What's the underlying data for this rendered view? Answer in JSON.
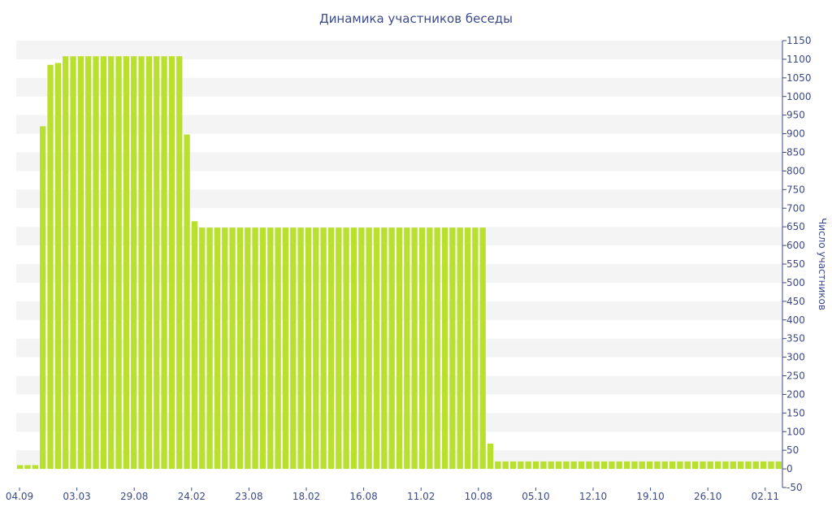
{
  "chart_data": {
    "type": "bar",
    "title": "Динамика участников беседы",
    "xlabel": "",
    "ylabel": "Число участников",
    "ylim": [
      -50,
      1150
    ],
    "y_ticks": [
      -50,
      0,
      50,
      100,
      150,
      200,
      250,
      300,
      350,
      400,
      450,
      500,
      550,
      600,
      650,
      700,
      750,
      800,
      850,
      900,
      950,
      1000,
      1050,
      1100,
      1150
    ],
    "y_axis_side": "right",
    "x_tick_labels": [
      "04.09",
      "03.03",
      "29.08",
      "24.02",
      "23.08",
      "18.02",
      "16.08",
      "11.02",
      "10.08",
      "05.10",
      "12.10",
      "19.10",
      "26.10",
      "02.11"
    ],
    "bar_color": "#b8e02d",
    "band_color": "#f4f4f4",
    "values": [
      10,
      10,
      10,
      920,
      1085,
      1090,
      1108,
      1108,
      1108,
      1108,
      1108,
      1108,
      1108,
      1108,
      1108,
      1108,
      1108,
      1108,
      1108,
      1108,
      1108,
      1108,
      898,
      665,
      648,
      648,
      648,
      648,
      648,
      648,
      648,
      648,
      648,
      648,
      648,
      648,
      648,
      648,
      648,
      648,
      648,
      648,
      648,
      648,
      648,
      648,
      648,
      648,
      648,
      648,
      648,
      648,
      648,
      648,
      648,
      648,
      648,
      648,
      648,
      648,
      648,
      648,
      68,
      20,
      20,
      20,
      20,
      20,
      20,
      20,
      20,
      20,
      20,
      20,
      20,
      20,
      20,
      20,
      20,
      20,
      20,
      20,
      20,
      20,
      20,
      20,
      20,
      20,
      20,
      20,
      20,
      20,
      20,
      20,
      20,
      20,
      20,
      20,
      20,
      20,
      20
    ]
  }
}
